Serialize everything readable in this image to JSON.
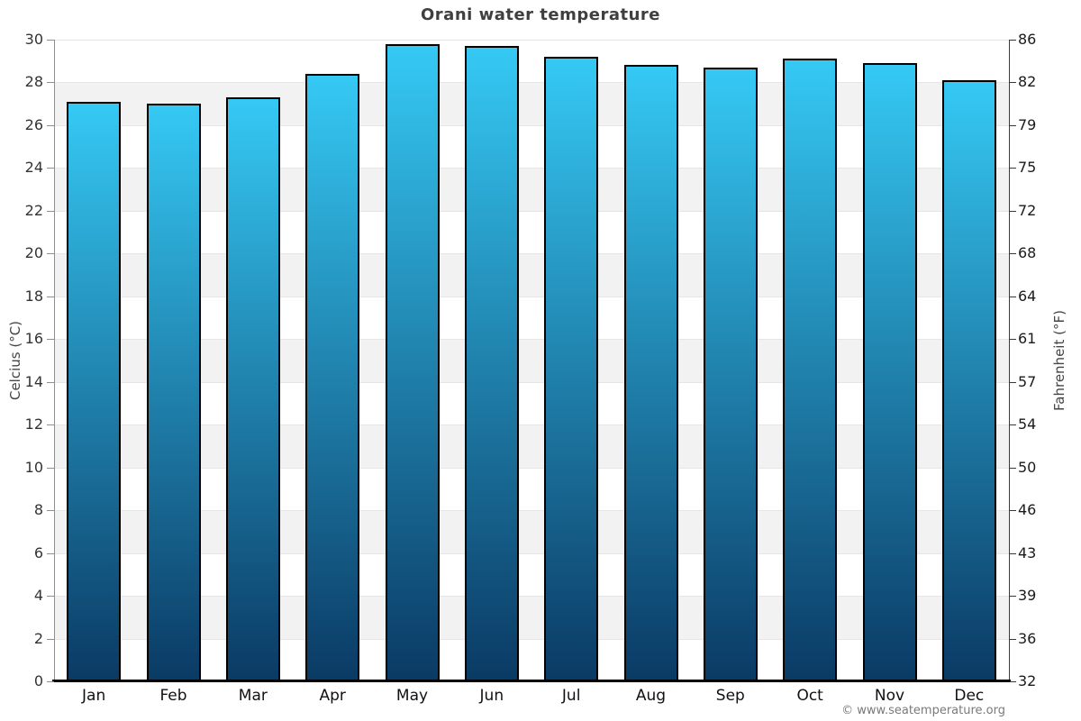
{
  "title": "Orani water temperature",
  "chart_data": {
    "type": "bar",
    "title": "Orani water temperature",
    "categories": [
      "Jan",
      "Feb",
      "Mar",
      "Apr",
      "May",
      "Jun",
      "Jul",
      "Aug",
      "Sep",
      "Oct",
      "Nov",
      "Dec"
    ],
    "values": [
      27.1,
      27.0,
      27.3,
      28.4,
      29.8,
      29.7,
      29.2,
      28.8,
      28.7,
      29.1,
      28.9,
      28.1
    ],
    "series_unit": "°C",
    "ylabel_left": "Celcius (°C)",
    "ylabel_right": "Fahrenheit (°F)",
    "ylim": [
      0,
      30
    ],
    "ytick_step": 2,
    "celsius_tick_labels": [
      "0",
      "2",
      "4",
      "6",
      "8",
      "10",
      "12",
      "14",
      "16",
      "18",
      "20",
      "22",
      "24",
      "26",
      "28",
      "30"
    ],
    "fahrenheit_tick_labels": [
      "32",
      "36",
      "39",
      "43",
      "46",
      "50",
      "54",
      "57",
      "61",
      "64",
      "68",
      "72",
      "75",
      "79",
      "82",
      "86"
    ],
    "grid": "alternating horizontal bands every 2 units",
    "legend": "none",
    "colors": {
      "bar_gradient_top": "#35c9f4",
      "bar_gradient_bottom": "#0a3a64",
      "bar_border": "#000000",
      "band_gray": "#f2f2f2",
      "gridline": "#e6e6e6",
      "axis_bottom": "#000000",
      "title_text": "#3f3f3f"
    }
  },
  "footer": {
    "copyright": "© www.seatemperature.org"
  }
}
